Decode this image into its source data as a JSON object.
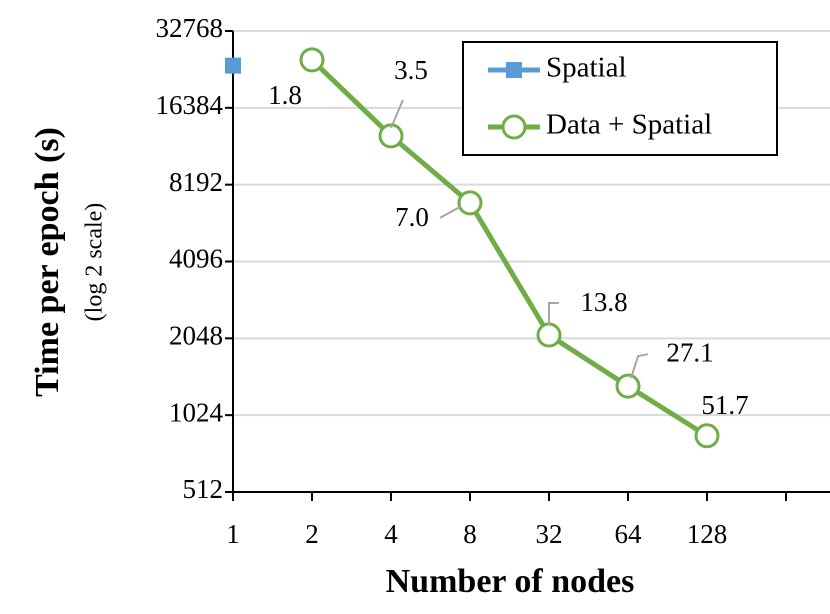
{
  "chart_data": {
    "type": "line",
    "x_label": "Number of nodes",
    "y_label": "Time per epoch (s)",
    "y_label_sub": "(log 2 scale)",
    "categories": [
      "1",
      "2",
      "4",
      "8",
      "32",
      "64",
      "128",
      null
    ],
    "yscale": "log2",
    "ylim": [
      512,
      32768
    ],
    "yticks": [
      512,
      1024,
      2048,
      4096,
      8192,
      16384,
      32768
    ],
    "grid": true,
    "legend": "top-right",
    "series": [
      {
        "name": "Spatial",
        "color": "#5b9bd5",
        "marker": "square",
        "values": [
          23970,
          null,
          null,
          null,
          null,
          null,
          null,
          null
        ]
      },
      {
        "name": "Data + Spatial",
        "color": "#70ad47",
        "marker": "circle",
        "values": [
          null,
          25250,
          12720,
          6950,
          2110,
          1330,
          850,
          null
        ],
        "data_labels": [
          null,
          "1.8",
          "3.5",
          "7.0",
          "13.8",
          "27.1",
          "51.7",
          null
        ]
      }
    ]
  }
}
